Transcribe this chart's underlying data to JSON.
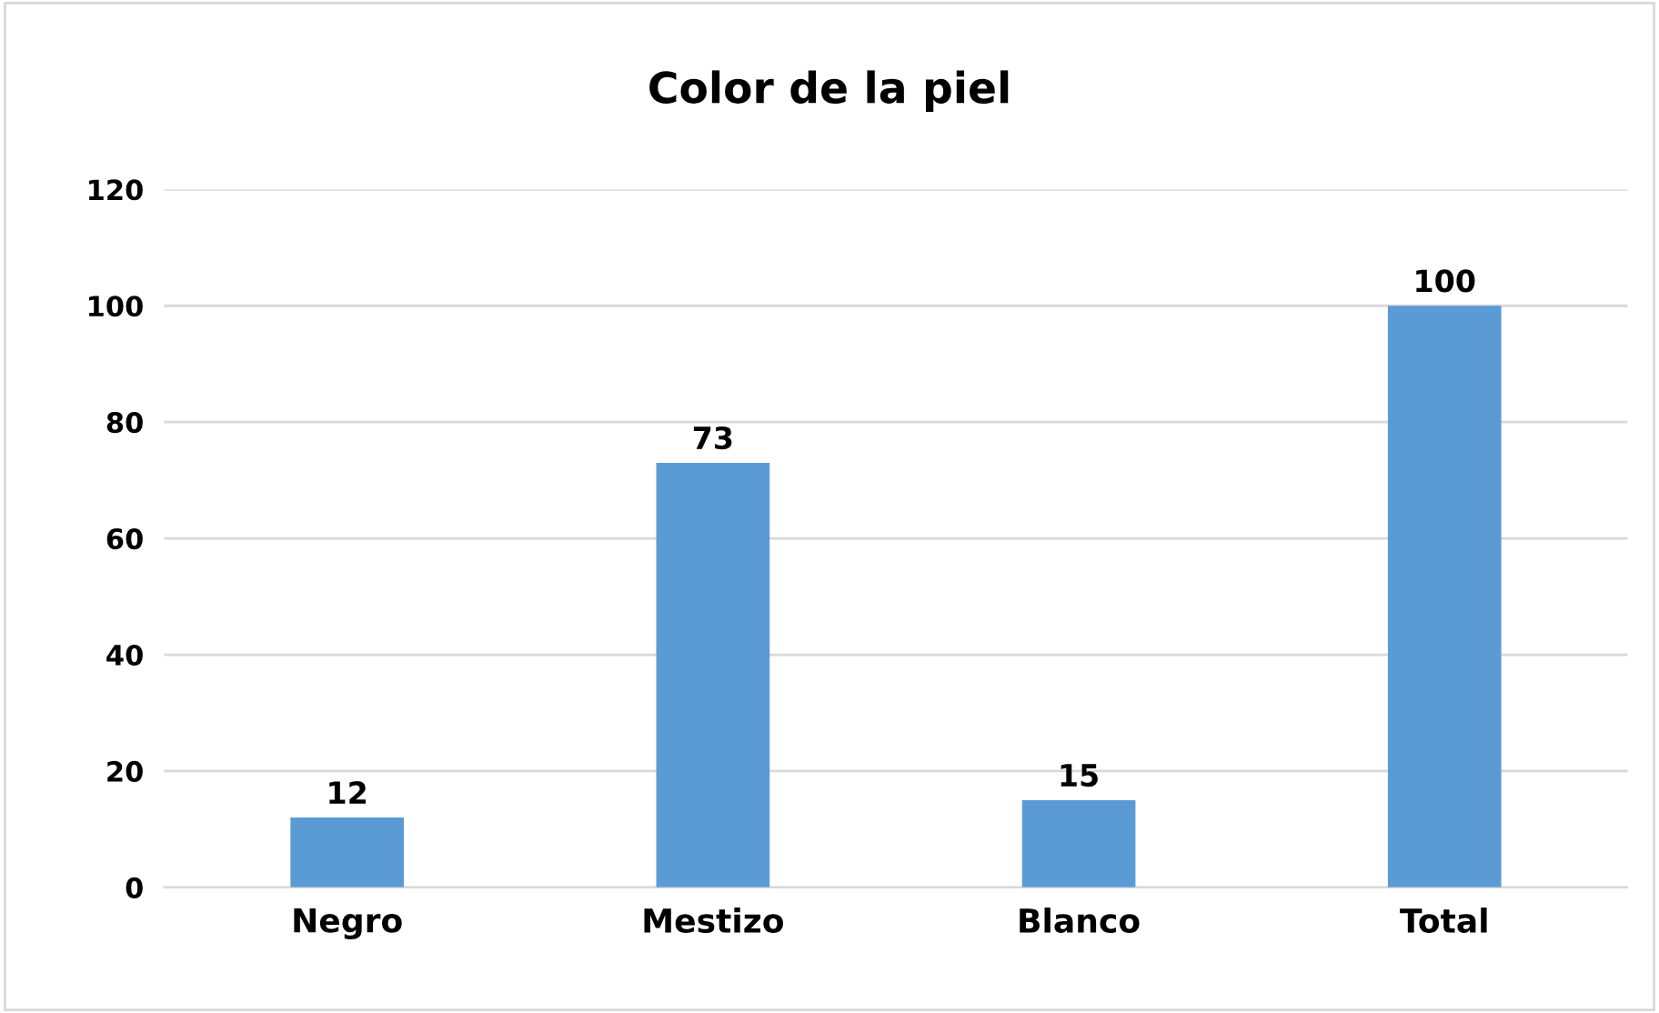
{
  "chart_data": {
    "type": "bar",
    "title": "Color de la piel",
    "categories": [
      "Negro",
      "Mestizo",
      "Blanco",
      "Total"
    ],
    "values": [
      12,
      73,
      15,
      100
    ],
    "color": "#5b9bd5",
    "ylim": [
      0,
      120
    ],
    "yticks": [
      0,
      20,
      40,
      60,
      80,
      100,
      120
    ],
    "grid": "y",
    "data_labels": true
  }
}
